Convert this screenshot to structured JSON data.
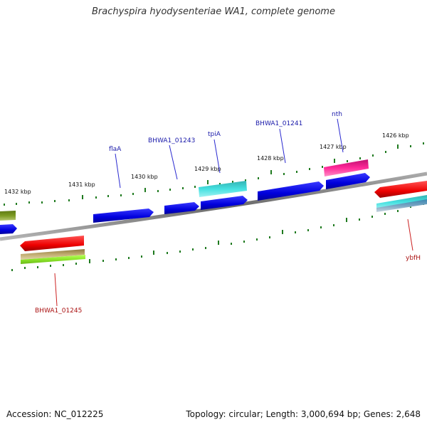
{
  "title": "Brachyspira hyodysenteriae WA1, complete genome",
  "footer": {
    "accession": "Accession: NC_012225",
    "summary": "Topology: circular; Length: 3,000,694 bp; Genes: 2,648"
  },
  "colors": {
    "forward_label": "#1a1aaa",
    "reverse_label": "#aa1111",
    "tick": "#1f7a1f",
    "backbone": "#7a7a7a"
  },
  "scale_labels": [
    {
      "text": "1432 kbp"
    },
    {
      "text": "1431 kbp"
    },
    {
      "text": "1430 kbp"
    },
    {
      "text": "1429 kbp"
    },
    {
      "text": "1428 kbp"
    },
    {
      "text": "1427 kbp"
    },
    {
      "text": "1426 kbp"
    }
  ],
  "gene_labels": [
    {
      "text": "flaA",
      "strand": "forward"
    },
    {
      "text": "BHWA1_01243",
      "strand": "forward"
    },
    {
      "text": "tpiA",
      "strand": "forward"
    },
    {
      "text": "BHWA1_01241",
      "strand": "forward"
    },
    {
      "text": "nth",
      "strand": "forward"
    },
    {
      "text": "BHWA1_01245",
      "strand": "reverse"
    },
    {
      "text": "ybfH",
      "strand": "reverse"
    }
  ]
}
